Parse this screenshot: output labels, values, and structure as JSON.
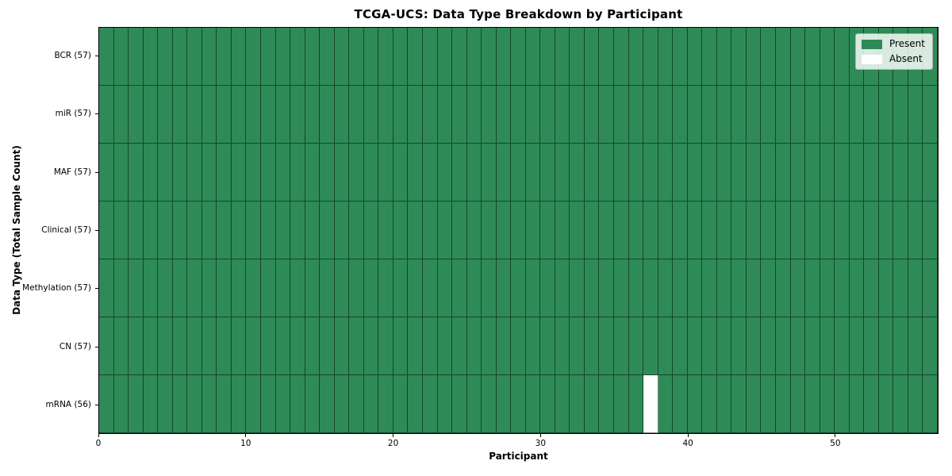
{
  "chart_data": {
    "type": "heatmap",
    "title": "TCGA-UCS: Data Type Breakdown by Participant",
    "xlabel": "Participant",
    "ylabel": "Data Type (Total Sample Count)",
    "n_participants": 57,
    "x_ticks": [
      0,
      10,
      20,
      30,
      40,
      50
    ],
    "x_range": [
      0,
      57
    ],
    "rows": [
      {
        "label": "BCR (57)",
        "data_type": "BCR",
        "present_count": 57,
        "absent_participant_indices": []
      },
      {
        "label": "miR (57)",
        "data_type": "miR",
        "present_count": 57,
        "absent_participant_indices": []
      },
      {
        "label": "MAF (57)",
        "data_type": "MAF",
        "present_count": 57,
        "absent_participant_indices": []
      },
      {
        "label": "Clinical (57)",
        "data_type": "Clinical",
        "present_count": 57,
        "absent_participant_indices": []
      },
      {
        "label": "Methylation (57)",
        "data_type": "Methylation",
        "present_count": 57,
        "absent_participant_indices": []
      },
      {
        "label": "CN (57)",
        "data_type": "CN",
        "present_count": 57,
        "absent_participant_indices": []
      },
      {
        "label": "mRNA (56)",
        "data_type": "mRNA",
        "present_count": 56,
        "absent_participant_indices": [
          37
        ]
      }
    ],
    "legend": {
      "position": "upper right",
      "items": [
        {
          "label": "Present",
          "color": "#2e8b57"
        },
        {
          "label": "Absent",
          "color": "#ffffff"
        }
      ]
    },
    "colors": {
      "present": "#2e8b57",
      "absent": "#ffffff",
      "cell_line": "rgba(0,0,0,0.5)",
      "axis": "#000000"
    },
    "grid": true
  }
}
